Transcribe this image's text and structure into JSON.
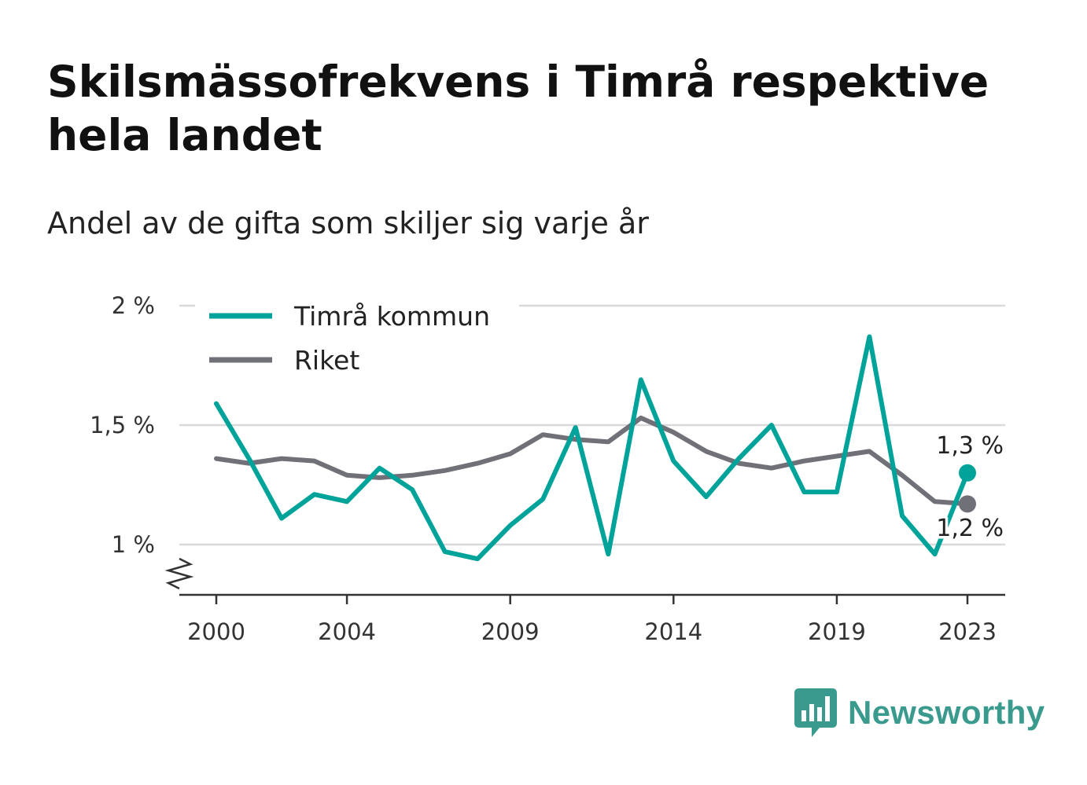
{
  "title": "Skilsmässofrekvens i Timrå respektive hela landet",
  "subtitle": "Andel av de gifta som skiljer sig varje år",
  "brand": {
    "name": "Newsworthy",
    "icon": "newsworthy-logo-icon",
    "color": "#3a9a8e"
  },
  "colors": {
    "timra": "#00a39a",
    "riket": "#707078",
    "grid": "#d9d9d9",
    "axis": "#333333"
  },
  "chart_data": {
    "type": "line",
    "x": [
      2000,
      2001,
      2002,
      2003,
      2004,
      2005,
      2006,
      2007,
      2008,
      2009,
      2010,
      2011,
      2012,
      2013,
      2014,
      2015,
      2016,
      2017,
      2018,
      2019,
      2020,
      2021,
      2022,
      2023
    ],
    "x_ticks": [
      2000,
      2004,
      2009,
      2014,
      2019,
      2023
    ],
    "x_tick_labels": [
      "2000",
      "2004",
      "2009",
      "2014",
      "2019",
      "2023"
    ],
    "y_ticks": [
      1.0,
      1.5,
      2.0
    ],
    "y_tick_labels": [
      "1 %",
      "1,5 %",
      "2 %"
    ],
    "ylim": [
      0.8,
      2.0
    ],
    "y_axis_break": true,
    "grid": "horizontal",
    "legend_position": "top-left",
    "series": [
      {
        "name": "Timrå kommun",
        "color": "#00a39a",
        "values": [
          1.59,
          1.36,
          1.11,
          1.21,
          1.18,
          1.32,
          1.23,
          0.97,
          0.94,
          1.08,
          1.19,
          1.49,
          0.96,
          1.69,
          1.35,
          1.2,
          1.36,
          1.5,
          1.22,
          1.22,
          1.87,
          1.12,
          0.96,
          1.3
        ],
        "end_label": "1,3 %"
      },
      {
        "name": "Riket",
        "color": "#707078",
        "values": [
          1.36,
          1.34,
          1.36,
          1.35,
          1.29,
          1.28,
          1.29,
          1.31,
          1.34,
          1.38,
          1.46,
          1.44,
          1.43,
          1.53,
          1.47,
          1.39,
          1.34,
          1.32,
          1.35,
          1.37,
          1.39,
          1.29,
          1.18,
          1.17
        ],
        "end_label": "1,2 %"
      }
    ]
  }
}
